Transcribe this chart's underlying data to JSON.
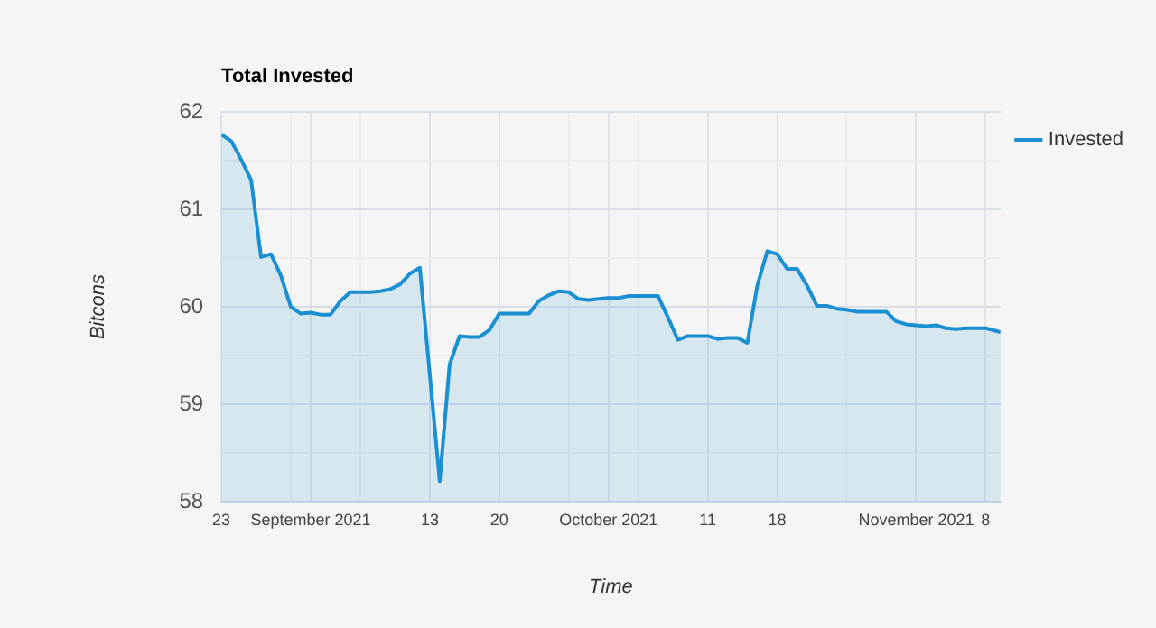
{
  "chart_data": {
    "type": "area",
    "title": "Total Invested",
    "xlabel": "Time",
    "ylabel": "Bitcons",
    "x": [
      "2021-08-23",
      "2021-08-24",
      "2021-08-25",
      "2021-08-26",
      "2021-08-27",
      "2021-08-28",
      "2021-08-29",
      "2021-08-30",
      "2021-08-31",
      "2021-09-01",
      "2021-09-02",
      "2021-09-03",
      "2021-09-04",
      "2021-09-05",
      "2021-09-06",
      "2021-09-07",
      "2021-09-08",
      "2021-09-09",
      "2021-09-10",
      "2021-09-11",
      "2021-09-12",
      "2021-09-14",
      "2021-09-15",
      "2021-09-16",
      "2021-09-17",
      "2021-09-18",
      "2021-09-19",
      "2021-09-20",
      "2021-09-21",
      "2021-09-22",
      "2021-09-23",
      "2021-09-24",
      "2021-09-25",
      "2021-09-26",
      "2021-09-27",
      "2021-09-28",
      "2021-09-29",
      "2021-09-30",
      "2021-10-01",
      "2021-10-02",
      "2021-10-03",
      "2021-10-04",
      "2021-10-05",
      "2021-10-06",
      "2021-10-07",
      "2021-10-08",
      "2021-10-09",
      "2021-10-10",
      "2021-10-11",
      "2021-10-12",
      "2021-10-13",
      "2021-10-14",
      "2021-10-15",
      "2021-10-16",
      "2021-10-17",
      "2021-10-18",
      "2021-10-19",
      "2021-10-20",
      "2021-10-21",
      "2021-10-22",
      "2021-10-23",
      "2021-10-24",
      "2021-10-25",
      "2021-10-26",
      "2021-10-27",
      "2021-10-28",
      "2021-10-29",
      "2021-10-30",
      "2021-10-31",
      "2021-11-01",
      "2021-11-02",
      "2021-11-03",
      "2021-11-04",
      "2021-11-05",
      "2021-11-06",
      "2021-11-07",
      "2021-11-08",
      "2021-11-09T12:00"
    ],
    "series": [
      {
        "name": "Invested",
        "color": "#1a8fd1",
        "values": [
          61.77,
          61.7,
          61.51,
          61.3,
          60.51,
          60.54,
          60.32,
          60.0,
          59.93,
          59.94,
          59.92,
          59.92,
          60.06,
          60.15,
          60.15,
          60.15,
          60.16,
          60.18,
          60.23,
          60.34,
          60.4,
          58.21,
          59.41,
          59.7,
          59.69,
          59.69,
          59.76,
          59.93,
          59.93,
          59.93,
          59.93,
          60.06,
          60.12,
          60.16,
          60.15,
          60.08,
          60.07,
          60.08,
          60.09,
          60.09,
          60.11,
          60.11,
          60.11,
          60.11,
          59.89,
          59.66,
          59.7,
          59.7,
          59.7,
          59.67,
          59.68,
          59.68,
          59.63,
          60.22,
          60.57,
          60.54,
          60.39,
          60.39,
          60.22,
          60.01,
          60.01,
          59.98,
          59.97,
          59.95,
          59.95,
          59.95,
          59.95,
          59.85,
          59.82,
          59.81,
          59.8,
          59.81,
          59.78,
          59.77,
          59.78,
          59.78,
          59.78,
          59.74
        ]
      }
    ],
    "xlim": [
      "2021-08-23",
      "2021-11-09T12:00"
    ],
    "xticks": [
      {
        "value": "2021-08-23",
        "label": "23"
      },
      {
        "value": "2021-08-30",
        "label": null
      },
      {
        "value": "2021-09-01",
        "label": "September 2021"
      },
      {
        "value": "2021-09-06",
        "label": null
      },
      {
        "value": "2021-09-13",
        "label": "13"
      },
      {
        "value": "2021-09-20",
        "label": "20"
      },
      {
        "value": "2021-09-27",
        "label": null
      },
      {
        "value": "2021-10-01",
        "label": "October 2021"
      },
      {
        "value": "2021-10-04",
        "label": null
      },
      {
        "value": "2021-10-11",
        "label": "11"
      },
      {
        "value": "2021-10-18",
        "label": "18"
      },
      {
        "value": "2021-10-25",
        "label": null
      },
      {
        "value": "2021-11-01",
        "label": "November 2021"
      },
      {
        "value": "2021-11-08",
        "label": "8"
      }
    ],
    "ylim": [
      58,
      62
    ],
    "yticks": [
      58,
      {
        "value": 58.5,
        "label": null
      },
      59,
      {
        "value": 59.5,
        "label": null
      },
      60,
      {
        "value": 60.5,
        "label": null
      },
      61,
      {
        "value": 61.5,
        "label": null
      },
      62
    ],
    "grid": true,
    "legend": "top right",
    "marker": "none",
    "line_style": "solid"
  }
}
